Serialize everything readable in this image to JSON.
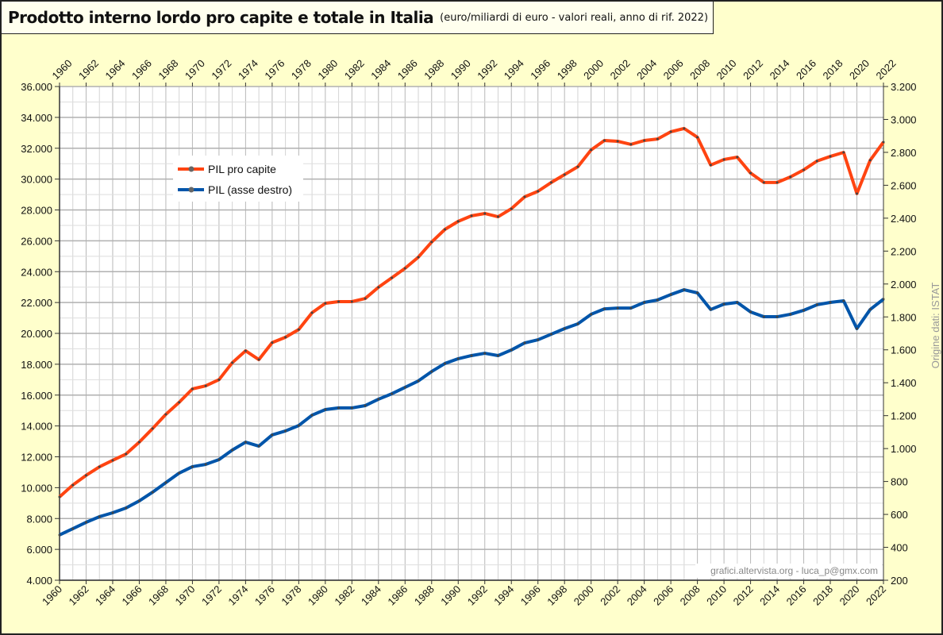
{
  "chart_data": {
    "type": "line",
    "title": "Prodotto interno lordo pro capite e totale in Italia",
    "subtitle": "(euro/miliardi di euro - valori reali, anno di rif. 2022)",
    "x": [
      1960,
      1961,
      1962,
      1963,
      1964,
      1965,
      1966,
      1967,
      1968,
      1969,
      1970,
      1971,
      1972,
      1973,
      1974,
      1975,
      1976,
      1977,
      1978,
      1979,
      1980,
      1981,
      1982,
      1983,
      1984,
      1985,
      1986,
      1987,
      1988,
      1989,
      1990,
      1991,
      1992,
      1993,
      1994,
      1995,
      1996,
      1997,
      1998,
      1999,
      2000,
      2001,
      2002,
      2003,
      2004,
      2005,
      2006,
      2007,
      2008,
      2009,
      2010,
      2011,
      2012,
      2013,
      2014,
      2015,
      2016,
      2017,
      2018,
      2019,
      2020,
      2021,
      2022
    ],
    "xlim": [
      1960,
      2022
    ],
    "x_tick_labels": [
      "1960",
      "1962",
      "1964",
      "1966",
      "1968",
      "1970",
      "1972",
      "1974",
      "1976",
      "1978",
      "1980",
      "1982",
      "1984",
      "1986",
      "1988",
      "1990",
      "1992",
      "1994",
      "1996",
      "1998",
      "2000",
      "2002",
      "2004",
      "2006",
      "2008",
      "2010",
      "2012",
      "2014",
      "2016",
      "2018",
      "2020",
      "2022"
    ],
    "ylim_left": [
      4000,
      36000
    ],
    "ylim_right": [
      200,
      3200
    ],
    "y_left_tick_labels": [
      "4.000",
      "6.000",
      "8.000",
      "10.000",
      "12.000",
      "14.000",
      "16.000",
      "18.000",
      "20.000",
      "22.000",
      "24.000",
      "26.000",
      "28.000",
      "30.000",
      "32.000",
      "34.000",
      "36.000"
    ],
    "y_right_tick_labels": [
      "200",
      "400",
      "600",
      "800",
      "1.000",
      "1.200",
      "1.400",
      "1.600",
      "1.800",
      "2.000",
      "2.200",
      "2.400",
      "2.600",
      "2.800",
      "3.000",
      "3.200"
    ],
    "grid": true,
    "legend_position": "top-left",
    "series": [
      {
        "name": "PIL pro capite",
        "axis": "left",
        "color": "#ff4411",
        "values": [
          9400,
          10170,
          10800,
          11350,
          11770,
          12180,
          12950,
          13830,
          14750,
          15530,
          16400,
          16600,
          17000,
          18100,
          18870,
          18300,
          19400,
          19750,
          20250,
          21340,
          21950,
          22060,
          22060,
          22260,
          22990,
          23600,
          24220,
          24940,
          25920,
          26740,
          27260,
          27620,
          27770,
          27560,
          28080,
          28850,
          29210,
          29780,
          30290,
          30800,
          31890,
          32500,
          32450,
          32250,
          32500,
          32600,
          33070,
          33280,
          32710,
          30910,
          31270,
          31420,
          30390,
          29780,
          29780,
          30140,
          30600,
          31170,
          31470,
          31730,
          29060,
          31220,
          32400
        ]
      },
      {
        "name": "PIL (asse destro)",
        "axis": "right",
        "color": "#0055aa",
        "values": [
          475,
          513,
          552,
          586,
          610,
          639,
          682,
          735,
          793,
          851,
          890,
          904,
          933,
          991,
          1039,
          1015,
          1083,
          1107,
          1140,
          1203,
          1237,
          1247,
          1247,
          1261,
          1300,
          1333,
          1372,
          1411,
          1468,
          1517,
          1546,
          1565,
          1579,
          1565,
          1599,
          1642,
          1661,
          1695,
          1729,
          1758,
          1816,
          1849,
          1854,
          1854,
          1888,
          1903,
          1936,
          1965,
          1946,
          1845,
          1878,
          1888,
          1830,
          1801,
          1801,
          1816,
          1840,
          1874,
          1888,
          1898,
          1729,
          1845,
          1908
        ]
      }
    ],
    "source_note": "Origine dati: ISTAT",
    "credit": "grafici.altervista.org - luca_p@gmx.com"
  }
}
